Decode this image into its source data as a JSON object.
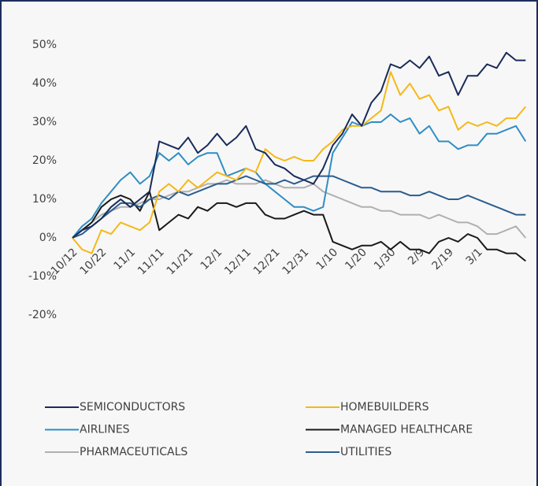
{
  "chart_data": {
    "type": "line",
    "categories": [
      "10/12",
      null,
      null,
      "10/22",
      null,
      null,
      "11/1",
      null,
      null,
      "11/11",
      null,
      null,
      "11/21",
      null,
      null,
      "12/1",
      null,
      null,
      "12/11",
      null,
      null,
      "12/21",
      null,
      null,
      "12/31",
      null,
      null,
      "1/10",
      null,
      null,
      "1/20",
      null,
      null,
      "1/30",
      null,
      null,
      "2/9",
      null,
      null,
      "2/19",
      null,
      null,
      "3/1",
      null,
      null,
      null,
      null,
      null
    ],
    "series": [
      {
        "name": "SEMICONDUCTORS",
        "color": "#1a2b5a",
        "values": [
          0,
          2,
          3,
          5,
          8,
          10,
          8,
          10,
          12,
          25,
          24,
          23,
          26,
          22,
          24,
          27,
          24,
          26,
          29,
          23,
          22,
          19,
          18,
          16,
          15,
          14,
          18,
          24,
          27,
          32,
          29,
          35,
          38,
          45,
          44,
          46,
          44,
          47,
          42,
          43,
          37,
          42,
          42,
          45,
          44,
          48,
          46,
          46
        ]
      },
      {
        "name": "HOMEBUILDERS",
        "color": "#f5b818",
        "values": [
          0,
          -3,
          -4,
          2,
          1,
          4,
          3,
          2,
          4,
          12,
          14,
          12,
          15,
          13,
          15,
          17,
          16,
          15,
          18,
          17,
          23,
          21,
          20,
          21,
          20,
          20,
          23,
          25,
          28,
          29,
          29,
          31,
          33,
          43,
          37,
          40,
          36,
          37,
          33,
          34,
          28,
          30,
          29,
          30,
          29,
          31,
          31,
          34
        ]
      },
      {
        "name": "AIRLINES",
        "color": "#2f8ec4",
        "values": [
          0,
          3,
          5,
          9,
          12,
          15,
          17,
          14,
          16,
          22,
          20,
          22,
          19,
          21,
          22,
          22,
          16,
          17,
          18,
          17,
          14,
          12,
          10,
          8,
          8,
          7,
          8,
          22,
          26,
          30,
          29,
          30,
          30,
          32,
          30,
          31,
          27,
          29,
          25,
          25,
          23,
          24,
          24,
          27,
          27,
          28,
          29,
          25
        ]
      },
      {
        "name": "MANAGED HEALTHCARE",
        "color": "#1a1a1a",
        "values": [
          0,
          2,
          4,
          8,
          10,
          11,
          10,
          7,
          12,
          2,
          4,
          6,
          5,
          8,
          7,
          9,
          9,
          8,
          9,
          9,
          6,
          5,
          5,
          6,
          7,
          6,
          6,
          -1,
          -2,
          -3,
          -2,
          -2,
          -1,
          -3,
          -1,
          -3,
          -3,
          -4,
          -1,
          0,
          -1,
          1,
          0,
          -3,
          -3,
          -4,
          -4,
          -6
        ]
      },
      {
        "name": "PHARMACEUTICALS",
        "color": "#b0b0b0",
        "values": [
          0,
          2,
          4,
          6,
          7,
          8,
          8,
          9,
          10,
          10,
          11,
          12,
          12,
          13,
          14,
          14,
          15,
          14,
          14,
          14,
          15,
          14,
          13,
          13,
          13,
          14,
          12,
          11,
          10,
          9,
          8,
          8,
          7,
          7,
          6,
          6,
          6,
          5,
          6,
          5,
          4,
          4,
          3,
          1,
          1,
          2,
          3,
          0
        ]
      },
      {
        "name": "UTILITIES",
        "color": "#2b5d8e",
        "values": [
          0,
          1,
          3,
          5,
          7,
          9,
          9,
          8,
          10,
          11,
          10,
          12,
          11,
          12,
          13,
          14,
          14,
          15,
          16,
          15,
          14,
          14,
          15,
          14,
          15,
          16,
          16,
          16,
          15,
          14,
          13,
          13,
          12,
          12,
          12,
          11,
          11,
          12,
          11,
          10,
          10,
          11,
          10,
          9,
          8,
          7,
          6,
          6
        ]
      }
    ],
    "ylim": [
      -20,
      50
    ],
    "yticks": [
      {
        "value": -20,
        "label": "-20%"
      },
      {
        "value": -10,
        "label": "-10%"
      },
      {
        "value": 0,
        "label": "0%"
      },
      {
        "value": 10,
        "label": "10%"
      },
      {
        "value": 20,
        "label": "20%"
      },
      {
        "value": 30,
        "label": "30%"
      },
      {
        "value": 40,
        "label": "40%"
      },
      {
        "value": 50,
        "label": "50%"
      }
    ],
    "grid": false,
    "legend": "bottom"
  }
}
